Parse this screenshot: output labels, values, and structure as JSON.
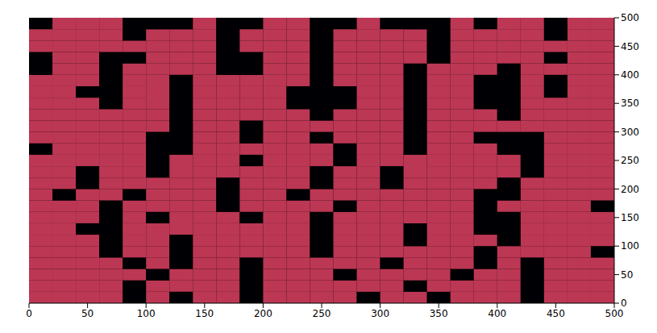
{
  "chart_data": {
    "type": "heatmap",
    "xlim": [
      0,
      500
    ],
    "ylim": [
      0,
      500
    ],
    "xticks": [
      0,
      50,
      100,
      150,
      200,
      250,
      300,
      350,
      400,
      450,
      500
    ],
    "yticks": [
      0,
      50,
      100,
      150,
      200,
      250,
      300,
      350,
      400,
      450,
      500
    ],
    "x_edges": [
      0,
      20,
      40,
      60,
      80,
      100,
      120,
      140,
      160,
      180,
      200,
      220,
      240,
      260,
      280,
      300,
      320,
      340,
      360,
      380,
      400,
      420,
      440,
      460,
      480,
      500
    ],
    "y_edges": [
      0,
      20,
      40,
      60,
      80,
      100,
      120,
      140,
      160,
      180,
      200,
      220,
      240,
      260,
      280,
      300,
      320,
      340,
      360,
      380,
      400,
      420,
      440,
      460,
      480,
      500
    ],
    "zlim": [
      0,
      1
    ],
    "z": [
      [
        0.5,
        0.5,
        0.5,
        0.5,
        0,
        0.5,
        0,
        0.5,
        0.5,
        0,
        0.5,
        0.5,
        0.5,
        0.5,
        0,
        0.5,
        0.5,
        0,
        0.5,
        0.5,
        0.5,
        0,
        0.5,
        0.5,
        0.5
      ],
      [
        0.5,
        0.5,
        0.5,
        0.5,
        0,
        0.5,
        0.5,
        0.5,
        0.5,
        0,
        0.5,
        0.5,
        0.5,
        0.5,
        0.5,
        0.5,
        0,
        0.5,
        0.5,
        0.5,
        0.5,
        0,
        0.5,
        0.5,
        0.5
      ],
      [
        0.5,
        0.5,
        0.5,
        0.5,
        0.5,
        0,
        0.5,
        0.5,
        0.5,
        0,
        0.5,
        0.5,
        0.5,
        0,
        0.5,
        0.5,
        0.5,
        0.5,
        0,
        0.5,
        0.5,
        0,
        0.5,
        0.5,
        0.5
      ],
      [
        0.5,
        0.5,
        0.5,
        0.5,
        0,
        0.5,
        0,
        0.5,
        0.5,
        0,
        0.5,
        0.5,
        0.5,
        0.5,
        0.5,
        0,
        0.5,
        0.5,
        0.5,
        0,
        0.5,
        0,
        0.5,
        0.5,
        0.5
      ],
      [
        0.5,
        0.5,
        0.5,
        0,
        0.5,
        0.5,
        0,
        0.5,
        0.5,
        0.5,
        0.5,
        0.5,
        0,
        0.5,
        0.5,
        0.5,
        0.5,
        0.5,
        0.5,
        0,
        0.5,
        0.5,
        0.5,
        0.5,
        0
      ],
      [
        0.5,
        0.5,
        0.5,
        0,
        0.5,
        0.5,
        0,
        0.5,
        0.5,
        0.5,
        0.5,
        0.5,
        0,
        0.5,
        0.5,
        0.5,
        0,
        0.5,
        0.5,
        0.5,
        0,
        0.5,
        0.5,
        0.5,
        0.5
      ],
      [
        0.5,
        0.5,
        0,
        0,
        0.5,
        0.5,
        0.5,
        0.5,
        0.5,
        0.5,
        0.5,
        0.5,
        0,
        0.5,
        0.5,
        0.5,
        0,
        0.5,
        0.5,
        0,
        0,
        0.5,
        0.5,
        0.5,
        0.5
      ],
      [
        0.5,
        0.5,
        0.5,
        0,
        0.5,
        0,
        0.5,
        0.5,
        0.5,
        0,
        0.5,
        0.5,
        0,
        0.5,
        0.5,
        0.5,
        0.5,
        0.5,
        0.5,
        0,
        0,
        0.5,
        0.5,
        0.5,
        0.5
      ],
      [
        0.5,
        0.5,
        0.5,
        0,
        0.5,
        0.5,
        0.5,
        0.5,
        0,
        0.5,
        0.5,
        0.5,
        0.5,
        0,
        0.5,
        0.5,
        0.5,
        0.5,
        0.5,
        0,
        0.5,
        0.5,
        0.5,
        0.5,
        0
      ],
      [
        0.5,
        0,
        0.5,
        0.5,
        0,
        0.5,
        0.5,
        0.5,
        0,
        0.5,
        0.5,
        0,
        0.5,
        0.5,
        0.5,
        0.5,
        0.5,
        0.5,
        0.5,
        0,
        0,
        0.5,
        0.5,
        0.5,
        0.5
      ],
      [
        0.5,
        0.5,
        0,
        0.5,
        0.5,
        0.5,
        0.5,
        0.5,
        0,
        0.5,
        0.5,
        0.5,
        0,
        0.5,
        0.5,
        0,
        0.5,
        0.5,
        0.5,
        0.5,
        0,
        0.5,
        0.5,
        0.5,
        0.5
      ],
      [
        0.5,
        0.5,
        0,
        0.5,
        0.5,
        0,
        0.5,
        0.5,
        0.5,
        0.5,
        0.5,
        0.5,
        0,
        0.5,
        0.5,
        0,
        0.5,
        0.5,
        0.5,
        0.5,
        0.5,
        0,
        0.5,
        0.5,
        0.5
      ],
      [
        0.5,
        0.5,
        0.5,
        0.5,
        0.5,
        0,
        0.5,
        0.5,
        0.5,
        0,
        0.5,
        0.5,
        0.5,
        0,
        0.5,
        0.5,
        0.5,
        0.5,
        0.5,
        0.5,
        0.5,
        0,
        0.5,
        0.5,
        0.5
      ],
      [
        0,
        0.5,
        0.5,
        0.5,
        0.5,
        0,
        0,
        0.5,
        0.5,
        0.5,
        0.5,
        0.5,
        0.5,
        0,
        0.5,
        0.5,
        0,
        0.5,
        0.5,
        0.5,
        0,
        0,
        0.5,
        0.5,
        0.5
      ],
      [
        0.5,
        0.5,
        0.5,
        0.5,
        0.5,
        0,
        0,
        0.5,
        0.5,
        0,
        0.5,
        0.5,
        0,
        0.5,
        0.5,
        0.5,
        0,
        0.5,
        0.5,
        0,
        0,
        0,
        0.5,
        0.5,
        0.5
      ],
      [
        0.5,
        0.5,
        0.5,
        0.5,
        0.5,
        0.5,
        0,
        0.5,
        0.5,
        0,
        0.5,
        0.5,
        0.5,
        0.5,
        0.5,
        0.5,
        0,
        0.5,
        0.5,
        0.5,
        0.5,
        0.5,
        0.5,
        0.5,
        0.5
      ],
      [
        0.5,
        0.5,
        0.5,
        0.5,
        0.5,
        0.5,
        0,
        0.5,
        0.5,
        0.5,
        0.5,
        0.5,
        0,
        0.5,
        0.5,
        0.5,
        0,
        0.5,
        0.5,
        0.5,
        0,
        0.5,
        0.5,
        0.5,
        0.5
      ],
      [
        0.5,
        0.5,
        0.5,
        0,
        0.5,
        0.5,
        0,
        0.5,
        0.5,
        0.5,
        0.5,
        0,
        0,
        0,
        0.5,
        0.5,
        0,
        0.5,
        0.5,
        0,
        0,
        0.5,
        0.5,
        0.5,
        0.5
      ],
      [
        0.5,
        0.5,
        0,
        0,
        0.5,
        0.5,
        0,
        0.5,
        0.5,
        0.5,
        0.5,
        0,
        0,
        0,
        0.5,
        0.5,
        0,
        0.5,
        0.5,
        0,
        0,
        0.5,
        0,
        0.5,
        0.5
      ],
      [
        0.5,
        0.5,
        0.5,
        0,
        0.5,
        0.5,
        0,
        0.5,
        0.5,
        0.5,
        0.5,
        0.5,
        0,
        0.5,
        0.5,
        0.5,
        0,
        0.5,
        0.5,
        0,
        0,
        0.5,
        0,
        0.5,
        0.5
      ],
      [
        0,
        0.5,
        0.5,
        0,
        0.5,
        0.5,
        0.5,
        0.5,
        0,
        0,
        0.5,
        0.5,
        0,
        0.5,
        0.5,
        0.5,
        0,
        0.5,
        0.5,
        0.5,
        0,
        0.5,
        0.5,
        0.5,
        0.5
      ],
      [
        0,
        0.5,
        0.5,
        0,
        0,
        0.5,
        0.5,
        0.5,
        0,
        0,
        0.5,
        0.5,
        0,
        0.5,
        0.5,
        0.5,
        0.5,
        0,
        0.5,
        0.5,
        0.5,
        0.5,
        0,
        0.5,
        0.5
      ],
      [
        0.5,
        0.5,
        0.5,
        0.5,
        0.5,
        0.5,
        0.5,
        0.5,
        0,
        0.5,
        0.5,
        0.5,
        0,
        0.5,
        0.5,
        0.5,
        0.5,
        0,
        0.5,
        0.5,
        0.5,
        0.5,
        0.5,
        0.5,
        0.5
      ],
      [
        0.5,
        0.5,
        0.5,
        0.5,
        0,
        0.5,
        0.5,
        0.5,
        0,
        0.5,
        0.5,
        0.5,
        0,
        0.5,
        0.5,
        0.5,
        0.5,
        0,
        0.5,
        0.5,
        0.5,
        0.5,
        0,
        0.5,
        0.5
      ],
      [
        0,
        0.5,
        0.5,
        0.5,
        0,
        0,
        0,
        0.5,
        0,
        0,
        0.5,
        0.5,
        0,
        0,
        0.5,
        0,
        0,
        0,
        0.5,
        0,
        0.5,
        0.5,
        0,
        0.5,
        0.5
      ]
    ]
  }
}
